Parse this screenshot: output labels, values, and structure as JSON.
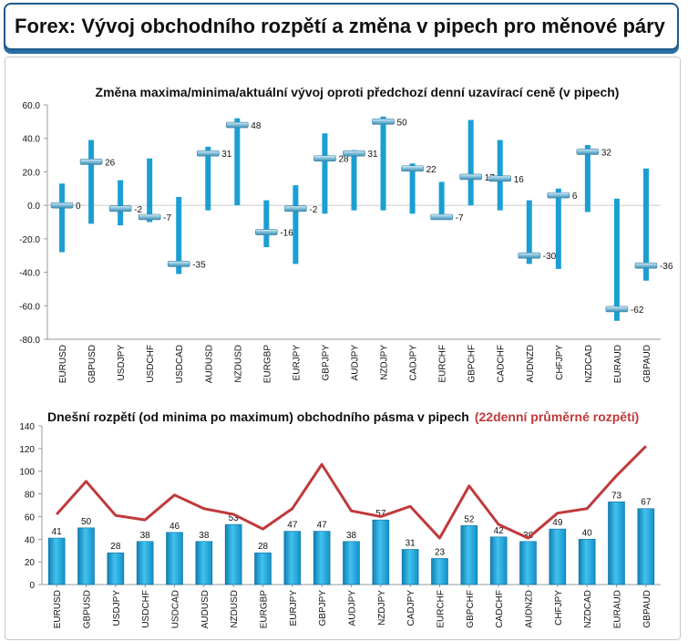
{
  "page": {
    "header_title": "Forex: Vývoj obchodního rozpětí a změna v pipech pro měnové páry"
  },
  "chart_data": [
    {
      "type": "range-marker",
      "title": "Změna maxima/minima/aktuální vývoj oproti předchozí denní uzavírací ceně (v pipech)",
      "categories": [
        "EURUSD",
        "GBPUSD",
        "USDJPY",
        "USDCHF",
        "USDCAD",
        "AUDUSD",
        "NZDUSD",
        "EURGBP",
        "EURJPY",
        "GBPJPY",
        "AUDJPY",
        "NZDJPY",
        "CADJPY",
        "EURCHF",
        "GBPCHF",
        "CADCHF",
        "AUDNZD",
        "CHFJPY",
        "NZDCAD",
        "EURAUD",
        "GBPAUD"
      ],
      "high": [
        13,
        39,
        15,
        28,
        5,
        35,
        52,
        3,
        12,
        43,
        33,
        53,
        25,
        14,
        51,
        39,
        3,
        10,
        36,
        4,
        22
      ],
      "low": [
        -28,
        -11,
        -12,
        -10,
        -41,
        -3,
        0,
        -25,
        -35,
        -5,
        -3,
        -3,
        -5,
        -8,
        0,
        -3,
        -35,
        -38,
        -4,
        -69,
        -45
      ],
      "current": [
        0,
        26,
        -2,
        -7,
        -35,
        31,
        48,
        -16,
        -2,
        28,
        31,
        50,
        22,
        -7,
        17,
        16,
        -30,
        6,
        32,
        -62,
        -36
      ],
      "ylim": [
        -80,
        60
      ],
      "yticks": [
        "60.0",
        "40.0",
        "20.0",
        "0.0",
        "-20.0",
        "-40.0",
        "-60.0",
        "-80.0"
      ],
      "colors": {
        "bar": "#1b9fd3",
        "marker": "#5fa8c9",
        "title": "#111111"
      }
    },
    {
      "type": "bar+line",
      "title": "Dnešní rozpětí (od minima po maximum) obchodního pásma v pipech",
      "title_highlight": "(22denní průměrné rozpětí)",
      "categories": [
        "EURUSD",
        "GBPUSD",
        "USDJPY",
        "USDCHF",
        "USDCAD",
        "AUDUSD",
        "NZDUSD",
        "EURGBP",
        "EURJPY",
        "GBPJPY",
        "AUDJPY",
        "NZDJPY",
        "CADJPY",
        "EURCHF",
        "GBPCHF",
        "CADCHF",
        "AUDNZD",
        "CHFJPY",
        "NZDCAD",
        "EURAUD",
        "GBPAUD"
      ],
      "series": [
        {
          "values": [
            41,
            50,
            28,
            38,
            46,
            38,
            53,
            28,
            47,
            47,
            38,
            57,
            31,
            23,
            52,
            42,
            38,
            49,
            40,
            73,
            67
          ]
        },
        {
          "values": [
            62,
            91,
            61,
            57,
            79,
            67,
            62,
            49,
            67,
            106,
            65,
            60,
            69,
            41,
            87,
            53,
            41,
            63,
            67,
            96,
            122
          ]
        }
      ],
      "ylim": [
        0,
        140
      ],
      "yticks": [
        "140",
        "120",
        "100",
        "80",
        "60",
        "40",
        "20",
        "0"
      ],
      "colors": {
        "bar": "#1aa3da",
        "line": "#c0393b",
        "highlight": "#c0393b"
      }
    }
  ]
}
